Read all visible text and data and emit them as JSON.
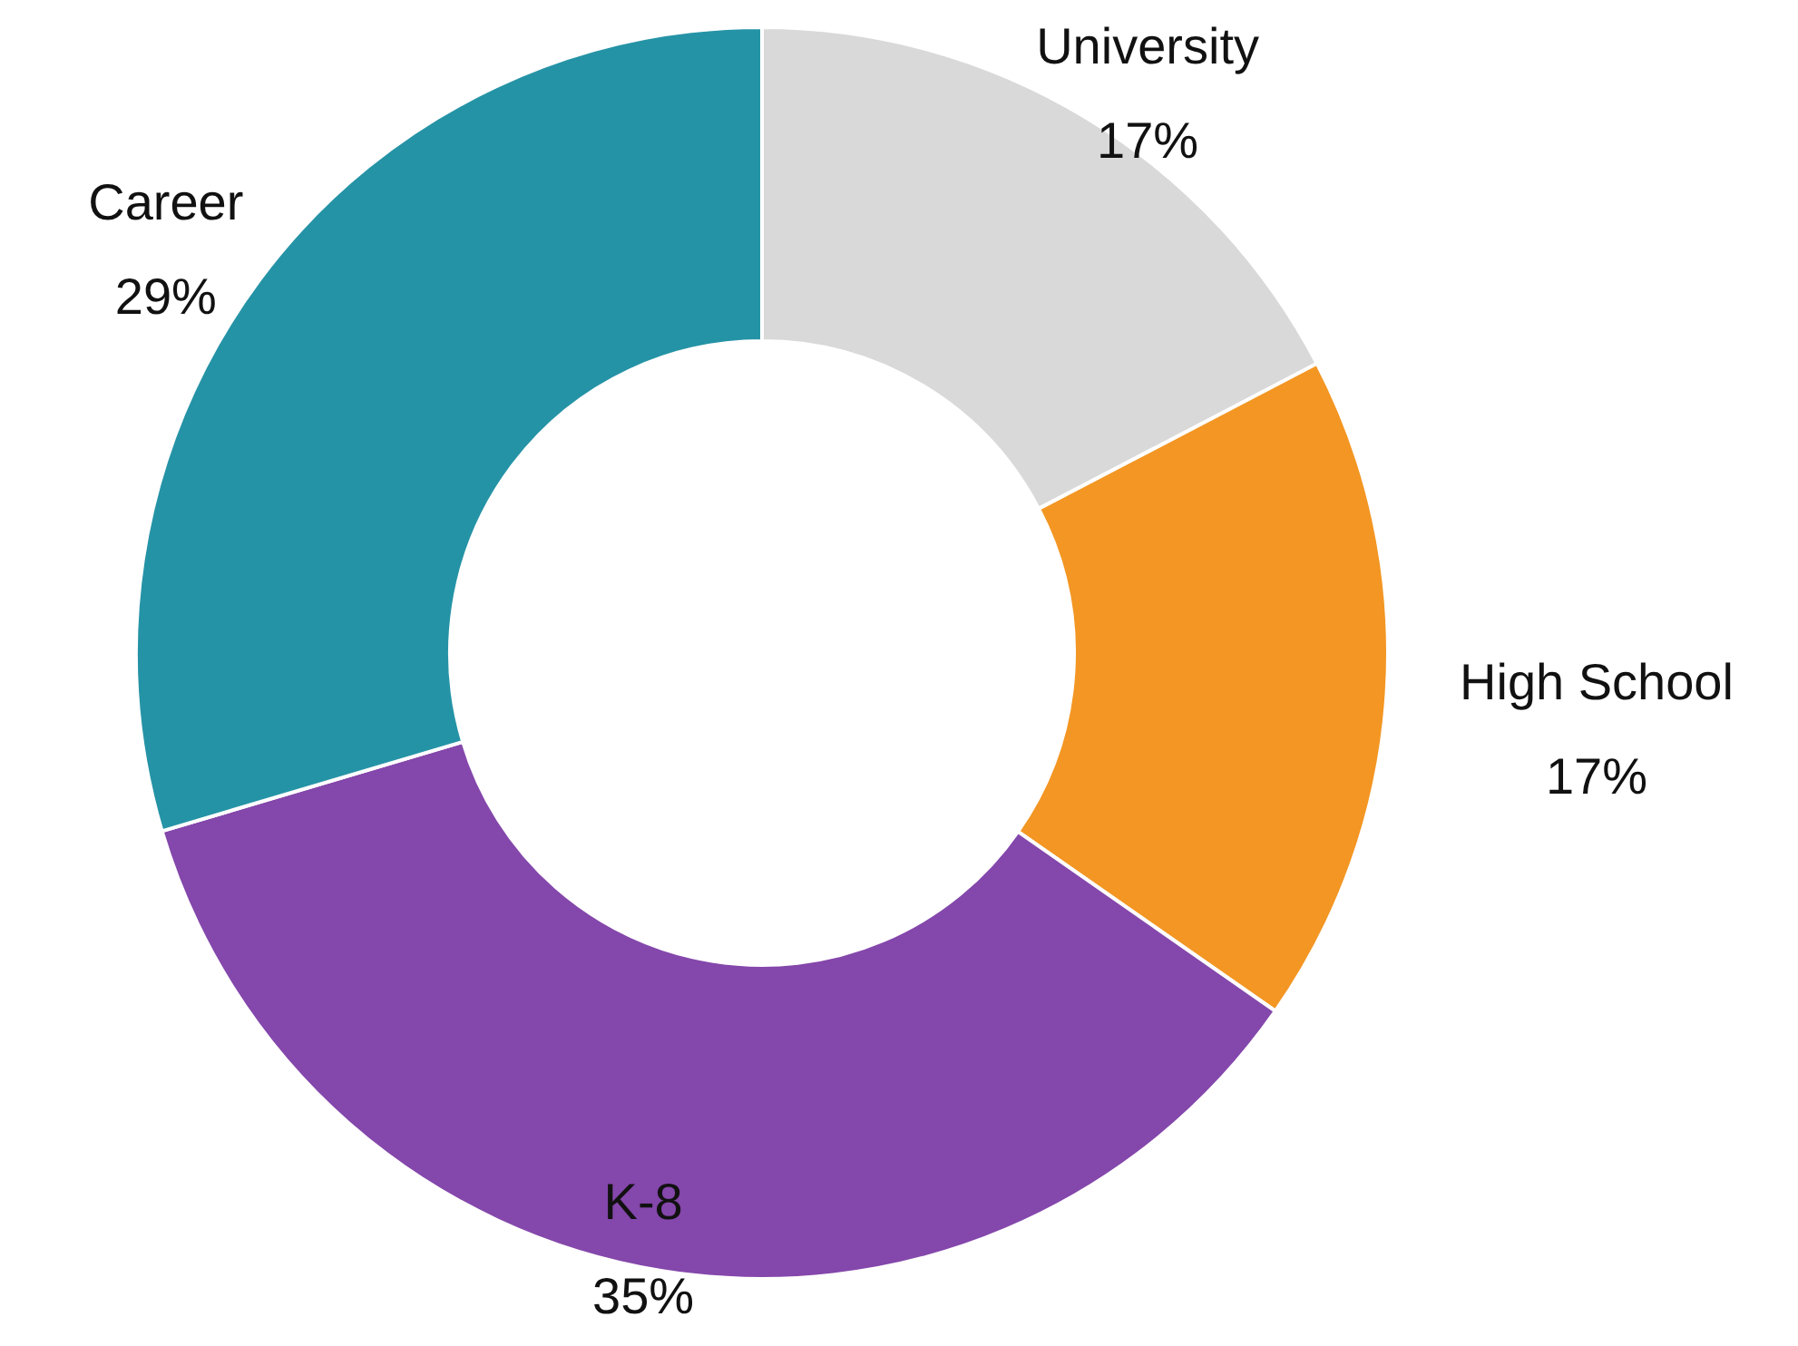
{
  "chart_data": {
    "type": "donut",
    "categories": [
      "University",
      "High School",
      "K-8",
      "Career"
    ],
    "values": [
      17,
      17,
      35,
      29
    ],
    "colors": [
      "#d9d9d9",
      "#f39623",
      "#8447ab",
      "#2593a6"
    ],
    "value_labels": [
      "17%",
      "17%",
      "35%",
      "29%"
    ]
  }
}
